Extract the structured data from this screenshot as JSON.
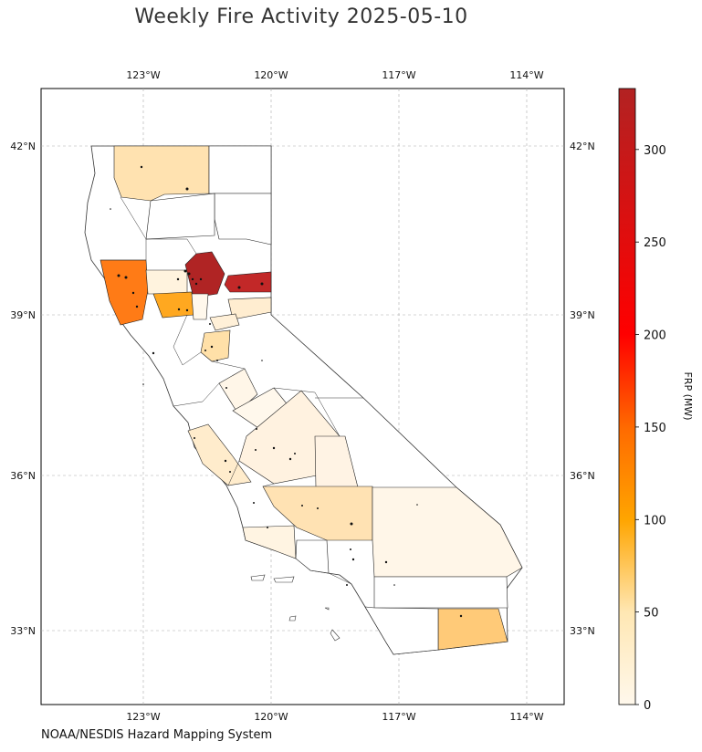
{
  "title": "Weekly Fire Activity 2025-05-10",
  "source": "NOAA/NESDIS Hazard Mapping System",
  "map": {
    "lon_ticks": [
      "123°W",
      "120°W",
      "117°W",
      "114°W"
    ],
    "lat_ticks": [
      "42°N",
      "39°N",
      "36°N",
      "33°N"
    ],
    "gridlines": true
  },
  "colorbar": {
    "label": "FRP (MW)",
    "ticks": [
      "0",
      "50",
      "100",
      "150",
      "200",
      "250",
      "300"
    ],
    "range": [
      0,
      333
    ],
    "colors": [
      "#fff8ec",
      "#ffe7b3",
      "#ffc25c",
      "#ffa500",
      "#ff6a00",
      "#ff0000",
      "#b22222"
    ]
  }
}
